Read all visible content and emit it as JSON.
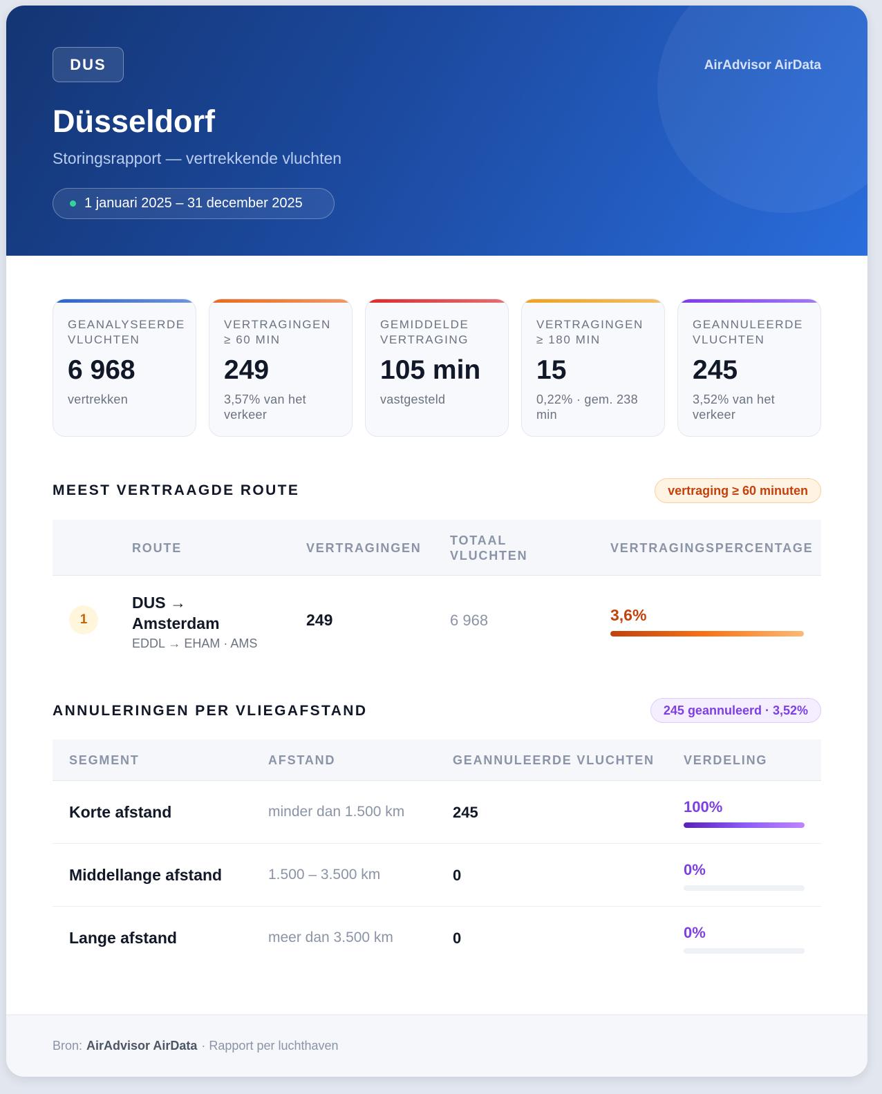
{
  "header": {
    "airport_code": "DUS",
    "brand": "AirAdvisor AirData",
    "city": "Düsseldorf",
    "subtitle": "Storingsrapport — vertrekkende vluchten",
    "date_range": "1 januari 2025 – 31 december 2025"
  },
  "stats": [
    {
      "label": "Geanalyseerde vluchten",
      "value": "6 968",
      "note": "vertrekken",
      "accent": "#2f63c9"
    },
    {
      "label": "Vertragingen ≥ 60 min",
      "value": "249",
      "note": "3,57% van het verkeer",
      "accent": "#ea6a1b"
    },
    {
      "label": "Gemiddelde vertraging",
      "value": "105 min",
      "note": "vastgesteld",
      "accent": "#dc2b2b"
    },
    {
      "label": "Vertragingen ≥ 180 min",
      "value": "15",
      "note": "0,22% · gem. 238 min",
      "accent": "#f0a11a"
    },
    {
      "label": "Geannuleerde vluchten",
      "value": "245",
      "note": "3,52% van het verkeer",
      "accent": "#7c3aed"
    }
  ],
  "delayed_route": {
    "title": "MEEST VERTRAAGDE ROUTE",
    "pill": "vertraging ≥ 60 minuten",
    "columns": [
      "Route",
      "Vertragingen",
      "Totaal vluchten",
      "Vertragingspercentage"
    ],
    "rows": [
      {
        "rank": "1",
        "route_line1": "DUS →",
        "route_line2": "Amsterdam",
        "codes": "EDDL → EHAM · AMS",
        "delays": "249",
        "total": "6 968",
        "pct_label": "3,6%",
        "pct_value": 3.6
      }
    ]
  },
  "cancellations": {
    "title": "ANNULERINGEN PER VLIEGAFSTAND",
    "pill": "245 geannuleerd · 3,52%",
    "columns": [
      "Segment",
      "Afstand",
      "Geannuleerde vluchten",
      "Verdeling"
    ],
    "rows": [
      {
        "segment": "Korte afstand",
        "distance": "minder dan 1.500 km",
        "count": "245",
        "share_label": "100%",
        "share": 100
      },
      {
        "segment": "Middellange afstand",
        "distance": "1.500 – 3.500 km",
        "count": "0",
        "share_label": "0%",
        "share": 0
      },
      {
        "segment": "Lange afstand",
        "distance": "meer dan 3.500 km",
        "count": "0",
        "share_label": "0%",
        "share": 0
      }
    ]
  },
  "footer": {
    "prefix": "Bron:",
    "source": "AirAdvisor AirData",
    "suffix": "· Rapport per luchthaven"
  }
}
